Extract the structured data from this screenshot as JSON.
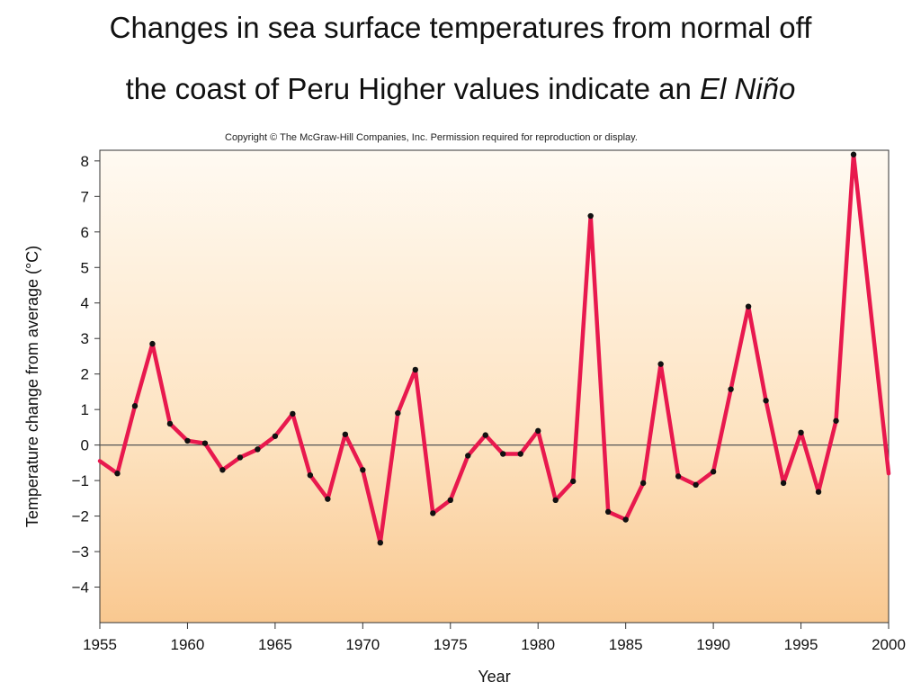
{
  "slide": {
    "title_line1": "Changes in sea surface temperatures from normal off",
    "title_line2_prefix": "the coast of Peru Higher values indicate an",
    "title_line2_italic": "El Niño",
    "copyright": "Copyright © The McGraw-Hill Companies, Inc. Permission required for reproduction or display."
  },
  "colors": {
    "line": "#e8194e",
    "marker": "#111111",
    "bg_top": "#fffaf2",
    "bg_mid": "#fde2bf",
    "bg_bottom": "#f9c890"
  },
  "chart_data": {
    "type": "line",
    "title": "",
    "xlabel": "Year",
    "ylabel": "Temperature change from average (°C)",
    "xlim": [
      1955,
      2000
    ],
    "ylim": [
      -5,
      8.3
    ],
    "xticks": [
      1955,
      1960,
      1965,
      1970,
      1975,
      1980,
      1985,
      1990,
      1995,
      2000
    ],
    "yticks": [
      8,
      7,
      6,
      5,
      4,
      3,
      2,
      1,
      0,
      -1,
      -2,
      -3,
      -4
    ],
    "ytick_labels": [
      "8",
      "7",
      "6",
      "5",
      "4",
      "3",
      "2",
      "1",
      "0",
      "−1",
      "−2",
      "−3",
      "−4"
    ],
    "zero_line": true,
    "grid": false,
    "series": [
      {
        "x": [
          1955,
          1956,
          1957,
          1958,
          1959,
          1960,
          1961,
          1962,
          1963,
          1964,
          1965,
          1966,
          1967,
          1968,
          1969,
          1970,
          1971,
          1972,
          1973,
          1974,
          1975,
          1976,
          1977,
          1978,
          1979,
          1980,
          1981,
          1982,
          1983,
          1984,
          1985,
          1986,
          1987,
          1988,
          1989,
          1990,
          1991,
          1992,
          1993,
          1994,
          1995,
          1996,
          1997,
          1998,
          1999,
          2000
        ],
        "y": [
          -0.45,
          -0.8,
          1.1,
          2.85,
          0.6,
          0.12,
          0.05,
          -0.7,
          -0.35,
          -0.12,
          0.25,
          0.88,
          -0.85,
          -1.52,
          0.3,
          -0.7,
          -2.75,
          0.9,
          2.12,
          -1.92,
          -1.55,
          -0.3,
          0.28,
          -0.25,
          -0.25,
          0.4,
          -1.55,
          -1.02,
          6.45,
          -1.88,
          -2.1,
          -1.07,
          2.28,
          -0.88,
          -1.12,
          -0.75,
          1.57,
          3.9,
          1.25,
          -1.07,
          0.35,
          -1.32,
          0.68,
          8.18,
          null,
          -0.8
        ]
      }
    ]
  }
}
